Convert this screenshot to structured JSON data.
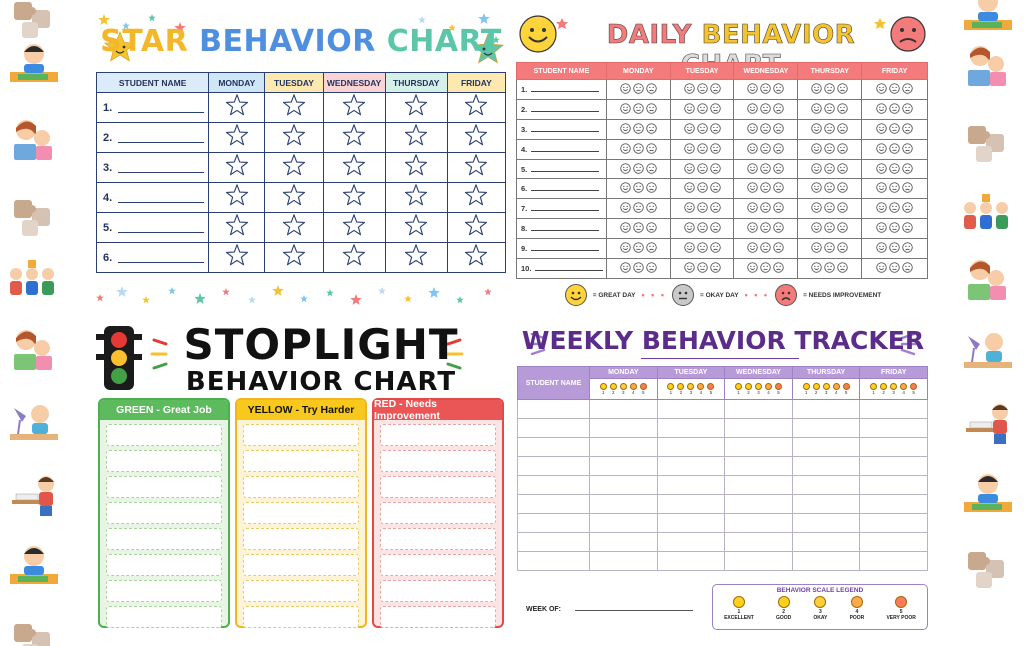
{
  "star_chart": {
    "title_parts": [
      "STAR",
      "BEHAVIOR",
      "CHART"
    ],
    "headers": [
      "STUDENT NAME",
      "MONDAY",
      "TUESDAY",
      "WEDNESDAY",
      "THURSDAY",
      "FRIDAY"
    ],
    "header_colors": [
      "#dcebf8",
      "#cfe6f7",
      "#fde9b0",
      "#fad4d4",
      "#d5f0e8",
      "#fde9b0"
    ],
    "rows": [
      "1.",
      "2.",
      "3.",
      "4.",
      "5.",
      "6."
    ]
  },
  "daily_chart": {
    "title_parts": [
      "DAILY",
      "BEHAVIOR",
      "CHART"
    ],
    "headers": [
      "STUDENT NAME",
      "MONDAY",
      "TUESDAY",
      "WEDNESDAY",
      "THURSDAY",
      "FRIDAY"
    ],
    "rows": [
      "1.",
      "2.",
      "3.",
      "4.",
      "5.",
      "6.",
      "7.",
      "8.",
      "9.",
      "10."
    ],
    "legend": [
      "= GREAT DAY",
      "= OKAY DAY",
      "= NEEDS IMPROVEMENT"
    ]
  },
  "stoplight_chart": {
    "title_line1": "STOPLIGHT",
    "title_line2": "BEHAVIOR CHART",
    "columns": [
      {
        "label": "GREEN - Great Job",
        "border": "#4caf50",
        "head": "#5dbb5e",
        "fill": "#e9f5e4",
        "slot": "#a6d59a",
        "text": "#ffffff"
      },
      {
        "label": "YELLOW - Try Harder",
        "border": "#f2b51f",
        "head": "#f8c91c",
        "fill": "#fdf4d8",
        "slot": "#f0c95c",
        "text": "#111111"
      },
      {
        "label": "RED - Needs Improvement",
        "border": "#e24a4a",
        "head": "#ea5555",
        "fill": "#fbe4e4",
        "slot": "#efa2a2",
        "text": "#ffffff"
      }
    ],
    "slots_per_column": 8
  },
  "weekly_tracker": {
    "title": "WEEKLY BEHAVIOR TRACKER",
    "name_header": "STUDENT NAME",
    "days": [
      "MONDAY",
      "TUESDAY",
      "WEDNESDAY",
      "THURSDAY",
      "FRIDAY"
    ],
    "scale_numbers": [
      "1",
      "2",
      "3",
      "4",
      "5"
    ],
    "scale_colors": [
      "#ffd21f",
      "#ffd21f",
      "#ffcf3a",
      "#ffa94d",
      "#ff7a5a"
    ],
    "blank_rows": 9,
    "week_of_label": "WEEK OF:",
    "legend_title": "BEHAVIOR SCALE LEGEND",
    "legend_items": [
      {
        "num": "1",
        "label": "EXCELLENT"
      },
      {
        "num": "2",
        "label": "GOOD"
      },
      {
        "num": "3",
        "label": "OKAY"
      },
      {
        "num": "4",
        "label": "POOR"
      },
      {
        "num": "5",
        "label": "VERY POOR"
      }
    ]
  },
  "decor": {
    "left_icons": [
      "puzzle-icon",
      "child-at-desk-icon",
      "kids-reading-icon",
      "puzzle-icon",
      "classroom-group-icon",
      "mother-reading-icon",
      "child-desk-lamp-icon",
      "child-writing-icon",
      "child-at-desk-icon",
      "puzzle-icon"
    ],
    "right_icons": [
      "child-at-desk-icon",
      "kids-reading-icon",
      "puzzle-icon",
      "classroom-group-icon",
      "mother-reading-icon",
      "child-desk-lamp-icon",
      "child-writing-icon",
      "child-at-desk-icon",
      "puzzle-icon"
    ]
  }
}
